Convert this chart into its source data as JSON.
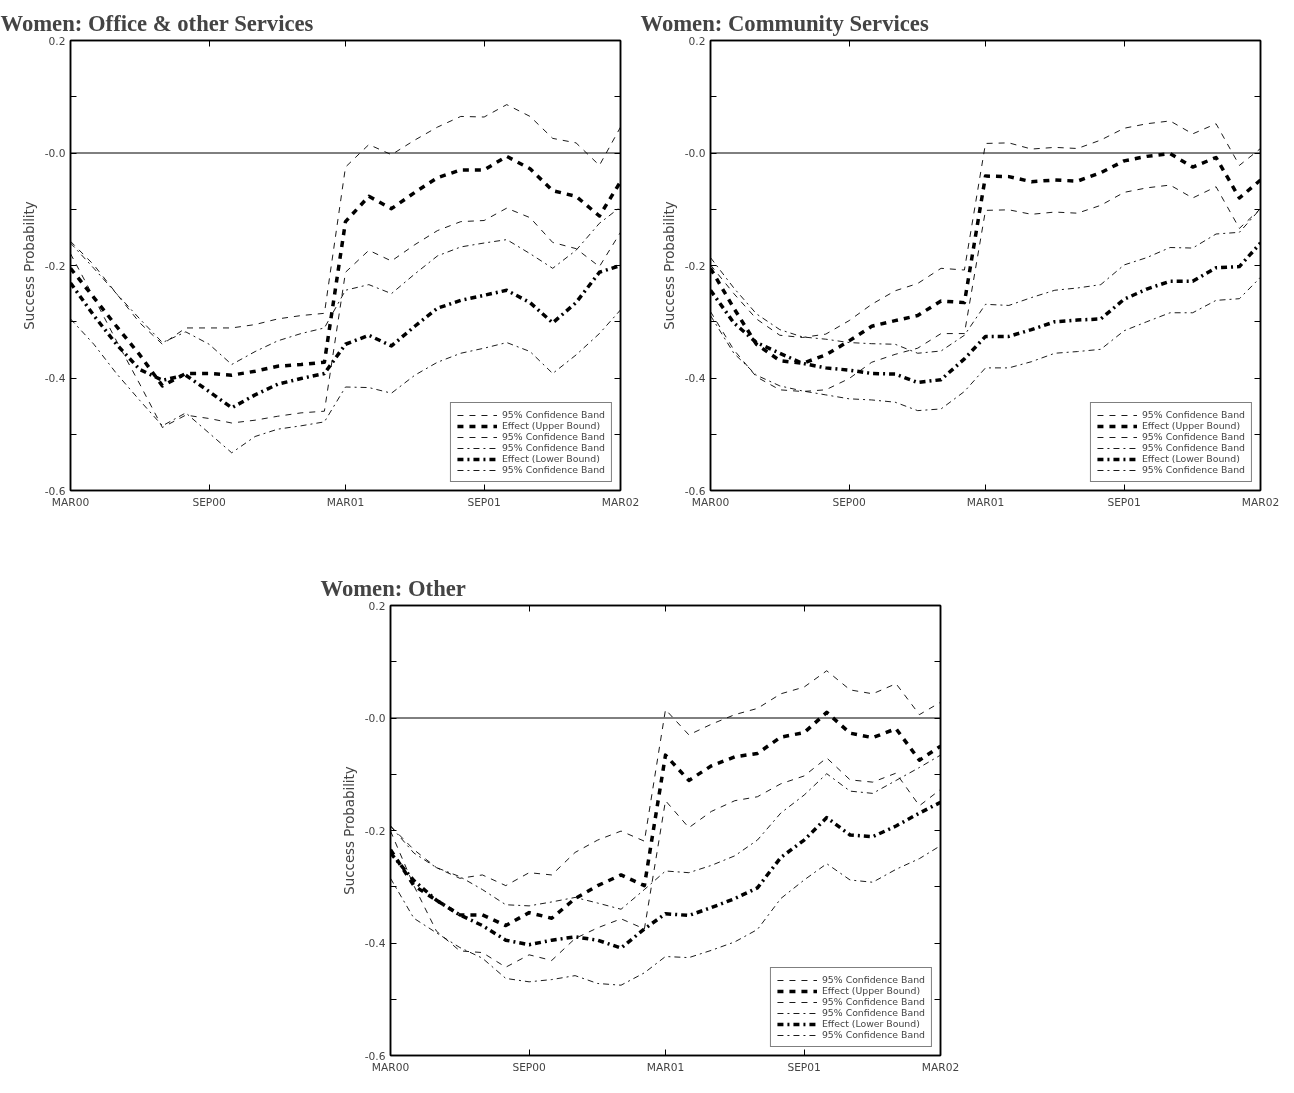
{
  "chart_data": [
    {
      "type": "line",
      "title": "Women: Office & other Services",
      "ylabel": "Success Probability",
      "legend": "bottom right",
      "x": [
        "2000-03",
        "2000-04",
        "2000-05",
        "2000-06",
        "2000-07",
        "2000-08",
        "2000-09",
        "2000-10",
        "2000-11",
        "2000-12",
        "2001-01",
        "2001-02",
        "2001-03",
        "2001-04",
        "2001-05",
        "2001-06",
        "2001-07",
        "2001-08",
        "2001-09",
        "2001-10",
        "2001-11",
        "2001-12",
        "2002-01",
        "2002-02",
        "2002-03"
      ],
      "xlim": [
        "2000-03",
        "2002-03"
      ],
      "xticks": [
        {
          "value": "2000-03",
          "label": "MAR00"
        },
        {
          "value": "2000-09",
          "label": "SEP00"
        },
        {
          "value": "2001-03",
          "label": "MAR01"
        },
        {
          "value": "2001-09",
          "label": "SEP01"
        },
        {
          "value": "2002-03",
          "label": "MAR02"
        }
      ],
      "ylim": [
        -0.6,
        0.2
      ],
      "yticks": [
        -0.6,
        {
          "value": -0.5,
          "label": null
        },
        -0.4,
        {
          "value": -0.3,
          "label": null
        },
        -0.2,
        {
          "value": -0.1,
          "label": null
        },
        {
          "value": 0,
          "label": "-0.0"
        },
        {
          "value": 0.1,
          "label": null
        },
        0.2
      ],
      "ref_lines": [
        {
          "axis": "y",
          "value": 0,
          "color": "#000000",
          "line_style": "solid"
        }
      ],
      "series": [
        {
          "name": "95% Confidence Band",
          "line_style": "dashed",
          "color": "#000000",
          "values": [
            -0.157,
            -0.199,
            -0.25,
            -0.302,
            -0.34,
            -0.311,
            -0.311,
            -0.311,
            -0.305,
            -0.295,
            -0.289,
            -0.285,
            -0.025,
            0.015,
            -0.003,
            0.023,
            0.046,
            0.065,
            0.064,
            0.086,
            0.065,
            0.026,
            0.018,
            -0.022,
            0.046
          ]
        },
        {
          "name": "Effect (Upper Bound)",
          "line_style": "dashed-bold",
          "color": "#000000",
          "values": [
            -0.205,
            -0.257,
            -0.308,
            -0.359,
            -0.414,
            -0.392,
            -0.392,
            -0.395,
            -0.388,
            -0.379,
            -0.376,
            -0.372,
            -0.122,
            -0.077,
            -0.099,
            -0.07,
            -0.044,
            -0.03,
            -0.03,
            -0.006,
            -0.028,
            -0.067,
            -0.077,
            -0.112,
            -0.051
          ]
        },
        {
          "name": "95% Confidence Band",
          "line_style": "dashed",
          "color": "#000000",
          "values": [
            -0.179,
            -0.257,
            -0.334,
            -0.411,
            -0.488,
            -0.466,
            -0.472,
            -0.48,
            -0.475,
            -0.468,
            -0.462,
            -0.459,
            -0.212,
            -0.173,
            -0.192,
            -0.163,
            -0.138,
            -0.122,
            -0.12,
            -0.098,
            -0.115,
            -0.159,
            -0.17,
            -0.202,
            -0.141
          ]
        },
        {
          "name": "95% Confidence Band",
          "line_style": "dashdot",
          "color": "#000000",
          "values": [
            -0.16,
            -0.205,
            -0.25,
            -0.295,
            -0.337,
            -0.318,
            -0.34,
            -0.376,
            -0.353,
            -0.334,
            -0.321,
            -0.311,
            -0.244,
            -0.234,
            -0.25,
            -0.215,
            -0.183,
            -0.167,
            -0.16,
            -0.154,
            -0.179,
            -0.205,
            -0.173,
            -0.125,
            -0.096
          ]
        },
        {
          "name": "Effect (Lower Bound)",
          "line_style": "dashdot-bold",
          "color": "#000000",
          "values": [
            -0.231,
            -0.289,
            -0.34,
            -0.385,
            -0.404,
            -0.395,
            -0.424,
            -0.453,
            -0.43,
            -0.411,
            -0.401,
            -0.392,
            -0.34,
            -0.324,
            -0.343,
            -0.308,
            -0.276,
            -0.262,
            -0.253,
            -0.244,
            -0.266,
            -0.302,
            -0.266,
            -0.212,
            -0.2
          ]
        },
        {
          "name": "95% Confidence Band",
          "line_style": "dashdot",
          "color": "#000000",
          "values": [
            -0.295,
            -0.34,
            -0.392,
            -0.44,
            -0.485,
            -0.462,
            -0.498,
            -0.533,
            -0.504,
            -0.491,
            -0.485,
            -0.478,
            -0.416,
            -0.417,
            -0.427,
            -0.395,
            -0.372,
            -0.356,
            -0.347,
            -0.337,
            -0.353,
            -0.392,
            -0.359,
            -0.321,
            -0.279
          ]
        }
      ]
    },
    {
      "type": "line",
      "title": "Women: Community Services",
      "ylabel": "Success Probability",
      "legend": "bottom right",
      "x": [
        "2000-03",
        "2000-04",
        "2000-05",
        "2000-06",
        "2000-07",
        "2000-08",
        "2000-09",
        "2000-10",
        "2000-11",
        "2000-12",
        "2001-01",
        "2001-02",
        "2001-03",
        "2001-04",
        "2001-05",
        "2001-06",
        "2001-07",
        "2001-08",
        "2001-09",
        "2001-10",
        "2001-11",
        "2001-12",
        "2002-01",
        "2002-02",
        "2002-03"
      ],
      "xlim": [
        "2000-03",
        "2002-03"
      ],
      "xticks": [
        {
          "value": "2000-03",
          "label": "MAR00"
        },
        {
          "value": "2000-09",
          "label": "SEP00"
        },
        {
          "value": "2001-03",
          "label": "MAR01"
        },
        {
          "value": "2001-09",
          "label": "SEP01"
        },
        {
          "value": "2002-03",
          "label": "MAR02"
        }
      ],
      "ylim": [
        -0.6,
        0.2
      ],
      "yticks": [
        -0.6,
        {
          "value": -0.5,
          "label": null
        },
        -0.4,
        {
          "value": -0.3,
          "label": null
        },
        -0.2,
        {
          "value": -0.1,
          "label": null
        },
        {
          "value": 0,
          "label": "-0.0"
        },
        {
          "value": 0.1,
          "label": null
        },
        0.2
      ],
      "ref_lines": [
        {
          "axis": "y",
          "value": 0,
          "color": "#000000",
          "line_style": "solid"
        }
      ],
      "series": [
        {
          "name": "95% Confidence Band",
          "line_style": "dashed",
          "color": "#000000",
          "values": [
            -0.199,
            -0.25,
            -0.295,
            -0.324,
            -0.328,
            -0.322,
            -0.298,
            -0.269,
            -0.245,
            -0.232,
            -0.205,
            -0.208,
            0.017,
            0.018,
            0.007,
            0.01,
            0.008,
            0.023,
            0.044,
            0.052,
            0.057,
            0.034,
            0.052,
            -0.022,
            0.008
          ]
        },
        {
          "name": "Effect (Upper Bound)",
          "line_style": "dashed-bold",
          "color": "#000000",
          "values": [
            -0.205,
            -0.276,
            -0.34,
            -0.369,
            -0.374,
            -0.359,
            -0.334,
            -0.308,
            -0.298,
            -0.289,
            -0.263,
            -0.266,
            -0.041,
            -0.042,
            -0.051,
            -0.048,
            -0.05,
            -0.035,
            -0.014,
            -0.006,
            -0.001,
            -0.025,
            -0.008,
            -0.08,
            -0.048
          ]
        },
        {
          "name": "95% Confidence Band",
          "line_style": "dashed",
          "color": "#000000",
          "values": [
            -0.282,
            -0.35,
            -0.398,
            -0.421,
            -0.424,
            -0.421,
            -0.401,
            -0.372,
            -0.358,
            -0.347,
            -0.321,
            -0.321,
            -0.102,
            -0.101,
            -0.109,
            -0.105,
            -0.107,
            -0.093,
            -0.07,
            -0.062,
            -0.057,
            -0.08,
            -0.06,
            -0.134,
            -0.099
          ]
        },
        {
          "name": "95% Confidence Band",
          "line_style": "dashdot",
          "color": "#000000",
          "values": [
            -0.186,
            -0.24,
            -0.286,
            -0.314,
            -0.327,
            -0.331,
            -0.337,
            -0.339,
            -0.34,
            -0.356,
            -0.352,
            -0.324,
            -0.269,
            -0.271,
            -0.257,
            -0.244,
            -0.24,
            -0.234,
            -0.199,
            -0.186,
            -0.168,
            -0.169,
            -0.144,
            -0.141,
            -0.099
          ]
        },
        {
          "name": "Effect (Lower Bound)",
          "line_style": "dashdot-bold",
          "color": "#000000",
          "values": [
            -0.244,
            -0.302,
            -0.337,
            -0.356,
            -0.374,
            -0.382,
            -0.386,
            -0.392,
            -0.393,
            -0.408,
            -0.403,
            -0.366,
            -0.326,
            -0.326,
            -0.314,
            -0.3,
            -0.297,
            -0.295,
            -0.26,
            -0.242,
            -0.228,
            -0.228,
            -0.204,
            -0.202,
            -0.16
          ]
        },
        {
          "name": "95% Confidence Band",
          "line_style": "dashdot",
          "color": "#000000",
          "values": [
            -0.289,
            -0.356,
            -0.395,
            -0.414,
            -0.423,
            -0.43,
            -0.437,
            -0.439,
            -0.443,
            -0.458,
            -0.455,
            -0.424,
            -0.382,
            -0.382,
            -0.371,
            -0.356,
            -0.353,
            -0.349,
            -0.316,
            -0.3,
            -0.284,
            -0.284,
            -0.262,
            -0.259,
            -0.221
          ]
        }
      ]
    },
    {
      "type": "line",
      "title": "Women: Other",
      "ylabel": "Success Probability",
      "legend": "bottom right",
      "x": [
        "2000-03",
        "2000-04",
        "2000-05",
        "2000-06",
        "2000-07",
        "2000-08",
        "2000-09",
        "2000-10",
        "2000-11",
        "2000-12",
        "2001-01",
        "2001-02",
        "2001-03",
        "2001-04",
        "2001-05",
        "2001-06",
        "2001-07",
        "2001-08",
        "2001-09",
        "2001-10",
        "2001-11",
        "2001-12",
        "2002-01",
        "2002-02",
        "2002-03"
      ],
      "xlim": [
        "2000-03",
        "2002-03"
      ],
      "xticks": [
        {
          "value": "2000-03",
          "label": "MAR00"
        },
        {
          "value": "2000-09",
          "label": "SEP00"
        },
        {
          "value": "2001-03",
          "label": "MAR01"
        },
        {
          "value": "2001-09",
          "label": "SEP01"
        },
        {
          "value": "2002-03",
          "label": "MAR02"
        }
      ],
      "ylim": [
        -0.6,
        0.2
      ],
      "yticks": [
        -0.6,
        {
          "value": -0.5,
          "label": null
        },
        -0.4,
        {
          "value": -0.3,
          "label": null
        },
        -0.2,
        {
          "value": -0.1,
          "label": null
        },
        {
          "value": 0,
          "label": "-0.0"
        },
        {
          "value": 0.1,
          "label": null
        },
        0.2
      ],
      "ref_lines": [
        {
          "axis": "y",
          "value": 0,
          "color": "#000000",
          "line_style": "solid"
        }
      ],
      "series": [
        {
          "name": "95% Confidence Band",
          "line_style": "dashed",
          "color": "#000000",
          "values": [
            -0.192,
            -0.234,
            -0.266,
            -0.285,
            -0.279,
            -0.298,
            -0.275,
            -0.279,
            -0.239,
            -0.217,
            -0.201,
            -0.219,
            0.015,
            -0.03,
            -0.011,
            0.006,
            0.017,
            0.043,
            0.055,
            0.084,
            0.05,
            0.043,
            0.061,
            0.006,
            0.028
          ]
        },
        {
          "name": "Effect (Upper Bound)",
          "line_style": "dashed-bold",
          "color": "#000000",
          "values": [
            -0.234,
            -0.298,
            -0.324,
            -0.35,
            -0.35,
            -0.369,
            -0.346,
            -0.356,
            -0.321,
            -0.298,
            -0.279,
            -0.298,
            -0.066,
            -0.111,
            -0.085,
            -0.069,
            -0.063,
            -0.034,
            -0.026,
            0.01,
            -0.027,
            -0.035,
            -0.019,
            -0.075,
            -0.05
          ]
        },
        {
          "name": "95% Confidence Band",
          "line_style": "dashed",
          "color": "#000000",
          "values": [
            -0.201,
            -0.298,
            -0.379,
            -0.414,
            -0.417,
            -0.443,
            -0.421,
            -0.431,
            -0.392,
            -0.373,
            -0.357,
            -0.375,
            -0.147,
            -0.195,
            -0.166,
            -0.147,
            -0.14,
            -0.117,
            -0.103,
            -0.071,
            -0.11,
            -0.114,
            -0.098,
            -0.156,
            -0.127
          ]
        },
        {
          "name": "95% Confidence Band",
          "line_style": "dashdot",
          "color": "#000000",
          "values": [
            -0.192,
            -0.24,
            -0.266,
            -0.282,
            -0.305,
            -0.332,
            -0.334,
            -0.327,
            -0.319,
            -0.329,
            -0.34,
            -0.305,
            -0.272,
            -0.275,
            -0.262,
            -0.245,
            -0.217,
            -0.169,
            -0.137,
            -0.099,
            -0.13,
            -0.134,
            -0.111,
            -0.088,
            -0.066
          ]
        },
        {
          "name": "Effect (Lower Bound)",
          "line_style": "dashdot-bold",
          "color": "#000000",
          "values": [
            -0.24,
            -0.289,
            -0.324,
            -0.35,
            -0.369,
            -0.395,
            -0.403,
            -0.395,
            -0.389,
            -0.395,
            -0.409,
            -0.375,
            -0.348,
            -0.351,
            -0.337,
            -0.321,
            -0.302,
            -0.248,
            -0.217,
            -0.177,
            -0.208,
            -0.211,
            -0.192,
            -0.169,
            -0.15
          ]
        },
        {
          "name": "95% Confidence Band",
          "line_style": "dashdot",
          "color": "#000000",
          "values": [
            -0.285,
            -0.356,
            -0.382,
            -0.408,
            -0.427,
            -0.463,
            -0.469,
            -0.465,
            -0.458,
            -0.472,
            -0.475,
            -0.453,
            -0.424,
            -0.426,
            -0.413,
            -0.398,
            -0.376,
            -0.321,
            -0.288,
            -0.259,
            -0.288,
            -0.292,
            -0.269,
            -0.25,
            -0.227
          ]
        }
      ]
    }
  ]
}
